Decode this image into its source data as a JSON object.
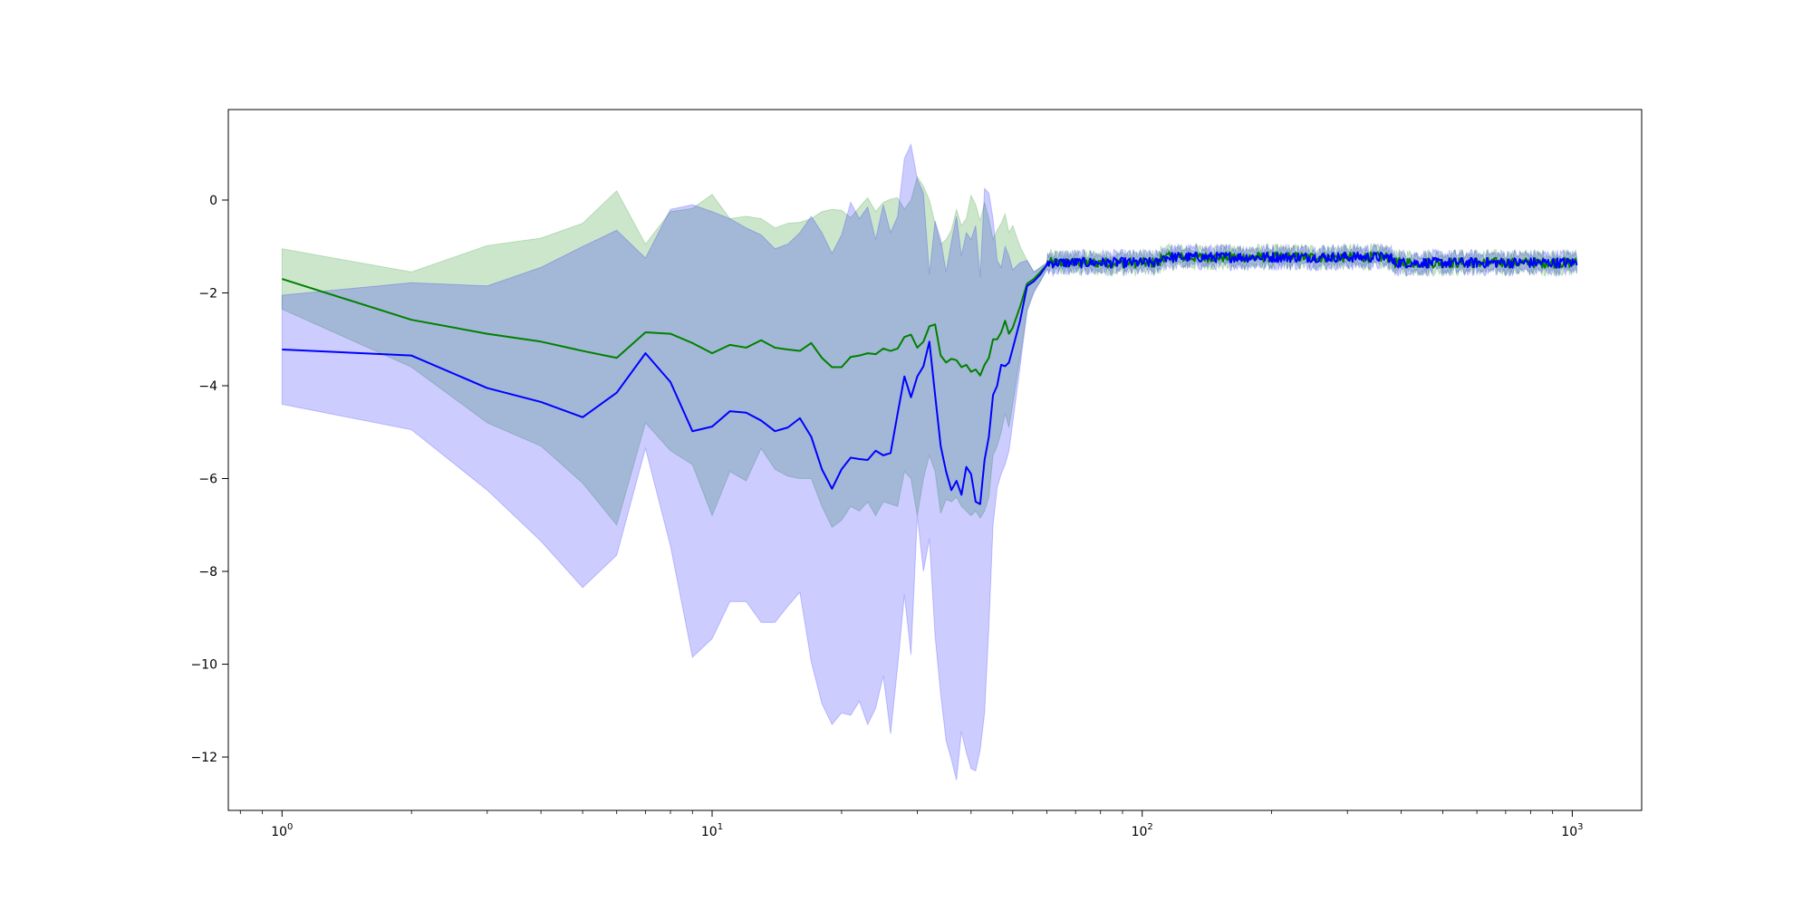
{
  "chart_data": {
    "type": "line",
    "title": "",
    "xlabel": "",
    "ylabel": "",
    "xscale": "log",
    "xlim": [
      0.75,
      1450
    ],
    "ylim": [
      -13.15,
      1.95
    ],
    "grid": false,
    "legend": "none",
    "x_ticks": [
      {
        "value": 1,
        "base": "10",
        "exp": "0"
      },
      {
        "value": 10,
        "base": "10",
        "exp": "1"
      },
      {
        "value": 100,
        "base": "10",
        "exp": "2"
      },
      {
        "value": 1000,
        "base": "10",
        "exp": "3"
      }
    ],
    "y_ticks": [
      {
        "value": 0,
        "label": "0"
      },
      {
        "value": -2,
        "label": "−2"
      },
      {
        "value": -4,
        "label": "−4"
      },
      {
        "value": -6,
        "label": "−6"
      },
      {
        "value": -8,
        "label": "−8"
      },
      {
        "value": -10,
        "label": "−10"
      },
      {
        "value": -12,
        "label": "−12"
      }
    ],
    "series": [
      {
        "color": "#008000",
        "band_color": "#008000",
        "band_opacity": 0.2,
        "x": [
          1,
          2,
          3,
          4,
          5,
          6,
          7,
          8,
          9,
          10,
          11,
          12,
          13,
          14,
          15,
          16,
          17,
          18,
          19,
          20,
          21,
          22,
          23,
          24,
          25,
          26,
          27,
          28,
          29,
          30,
          31,
          32,
          33,
          34,
          35,
          36,
          37,
          38,
          39,
          40,
          41,
          42,
          43,
          44,
          45,
          46,
          47,
          48,
          49,
          50,
          52,
          54,
          56,
          58,
          60
        ],
        "mean": [
          -1.7,
          -2.58,
          -2.88,
          -3.05,
          -3.25,
          -3.4,
          -2.85,
          -2.88,
          -3.08,
          -3.3,
          -3.12,
          -3.18,
          -3.02,
          -3.18,
          -3.22,
          -3.25,
          -3.08,
          -3.4,
          -3.6,
          -3.6,
          -3.38,
          -3.35,
          -3.3,
          -3.32,
          -3.2,
          -3.25,
          -3.2,
          -2.95,
          -2.9,
          -3.18,
          -3.05,
          -2.72,
          -2.68,
          -3.35,
          -3.5,
          -3.42,
          -3.45,
          -3.6,
          -3.55,
          -3.7,
          -3.65,
          -3.78,
          -3.55,
          -3.4,
          -3.0,
          -3.0,
          -2.85,
          -2.6,
          -2.88,
          -2.75,
          -2.3,
          -1.8,
          -1.7,
          -1.55,
          -1.4
        ],
        "upper": [
          -1.05,
          -1.55,
          -0.98,
          -0.82,
          -0.5,
          0.2,
          -0.95,
          -0.25,
          -0.18,
          0.12,
          -0.4,
          -0.35,
          -0.4,
          -0.6,
          -0.5,
          -0.48,
          -0.4,
          -0.25,
          -0.2,
          -0.22,
          -0.38,
          -0.15,
          0.05,
          -0.25,
          -0.05,
          0.02,
          0.05,
          -0.2,
          0.0,
          0.5,
          0.3,
          0.0,
          -0.5,
          -0.95,
          -0.85,
          -0.65,
          -0.2,
          -0.55,
          -0.4,
          0.1,
          -0.1,
          -0.45,
          -0.05,
          -0.4,
          -0.85,
          -0.65,
          -0.5,
          -0.3,
          -0.7,
          -0.55,
          -1.0,
          -1.3,
          -1.55,
          -1.45,
          -1.35
        ],
        "lower": [
          -2.35,
          -3.6,
          -4.8,
          -5.3,
          -6.1,
          -7.0,
          -4.8,
          -5.4,
          -5.7,
          -6.8,
          -5.85,
          -6.05,
          -5.35,
          -5.8,
          -5.95,
          -6.0,
          -6.0,
          -6.6,
          -7.05,
          -6.9,
          -6.6,
          -6.7,
          -6.5,
          -6.8,
          -6.5,
          -6.55,
          -6.6,
          -5.85,
          -6.0,
          -6.8,
          -6.0,
          -5.5,
          -5.85,
          -6.75,
          -6.45,
          -6.5,
          -6.4,
          -6.6,
          -6.7,
          -6.8,
          -6.7,
          -6.85,
          -6.7,
          -6.4,
          -5.5,
          -5.3,
          -5.0,
          -4.6,
          -4.9,
          -4.4,
          -3.4,
          -2.35,
          -1.95,
          -1.75,
          -1.5
        ]
      },
      {
        "color": "#0000ff",
        "band_color": "#0000ff",
        "band_opacity": 0.2,
        "x": [
          1,
          2,
          3,
          4,
          5,
          6,
          7,
          8,
          9,
          10,
          11,
          12,
          13,
          14,
          15,
          16,
          17,
          18,
          19,
          20,
          21,
          22,
          23,
          24,
          25,
          26,
          27,
          28,
          29,
          30,
          31,
          32,
          33,
          34,
          35,
          36,
          37,
          38,
          39,
          40,
          41,
          42,
          43,
          44,
          45,
          46,
          47,
          48,
          49,
          50,
          52,
          54,
          56,
          58,
          60
        ],
        "mean": [
          -3.22,
          -3.35,
          -4.05,
          -4.35,
          -4.68,
          -4.15,
          -3.3,
          -3.92,
          -4.98,
          -4.88,
          -4.55,
          -4.58,
          -4.75,
          -4.98,
          -4.9,
          -4.7,
          -5.1,
          -5.8,
          -6.22,
          -5.8,
          -5.55,
          -5.58,
          -5.6,
          -5.4,
          -5.5,
          -5.45,
          -4.6,
          -3.8,
          -4.25,
          -3.8,
          -3.58,
          -3.05,
          -4.2,
          -5.3,
          -5.85,
          -6.25,
          -6.05,
          -6.35,
          -5.75,
          -5.9,
          -6.5,
          -6.55,
          -5.6,
          -5.1,
          -4.2,
          -4.0,
          -3.55,
          -3.58,
          -3.5,
          -3.2,
          -2.6,
          -1.85,
          -1.75,
          -1.6,
          -1.4
        ],
        "upper": [
          -2.05,
          -1.78,
          -1.85,
          -1.45,
          -1.0,
          -0.65,
          -1.25,
          -0.2,
          -0.1,
          -0.25,
          -0.4,
          -0.6,
          -0.75,
          -1.05,
          -0.95,
          -0.7,
          -0.35,
          -0.7,
          -1.15,
          -0.75,
          -0.05,
          -0.4,
          -0.15,
          -0.85,
          -0.1,
          -0.7,
          -0.35,
          0.9,
          1.2,
          0.45,
          0.15,
          -1.6,
          -0.45,
          -0.85,
          -1.55,
          -0.9,
          -0.35,
          -1.2,
          -0.7,
          -0.85,
          -0.55,
          -1.65,
          0.25,
          0.15,
          -0.4,
          -1.3,
          -1.45,
          -1.0,
          -1.2,
          -1.5,
          -1.35,
          -1.3,
          -1.55,
          -1.45,
          -1.35
        ],
        "lower": [
          -4.4,
          -4.95,
          -6.25,
          -7.35,
          -8.35,
          -7.65,
          -5.35,
          -7.45,
          -9.85,
          -9.45,
          -8.65,
          -8.65,
          -9.1,
          -9.1,
          -8.75,
          -8.45,
          -9.95,
          -10.85,
          -11.3,
          -11.05,
          -11.1,
          -10.8,
          -11.3,
          -10.95,
          -10.25,
          -11.5,
          -10.05,
          -8.5,
          -9.8,
          -6.8,
          -8.0,
          -7.3,
          -9.4,
          -10.65,
          -11.65,
          -12.05,
          -12.5,
          -11.45,
          -11.9,
          -12.25,
          -12.3,
          -11.85,
          -11.05,
          -9.2,
          -7.0,
          -6.2,
          -5.9,
          -5.7,
          -5.4,
          -4.8,
          -3.6,
          -2.4,
          -2.0,
          -1.75,
          -1.5
        ]
      }
    ],
    "tail": {
      "x_range": [
        60,
        1024
      ],
      "approx_value": -1.35,
      "note_visible": false
    }
  }
}
